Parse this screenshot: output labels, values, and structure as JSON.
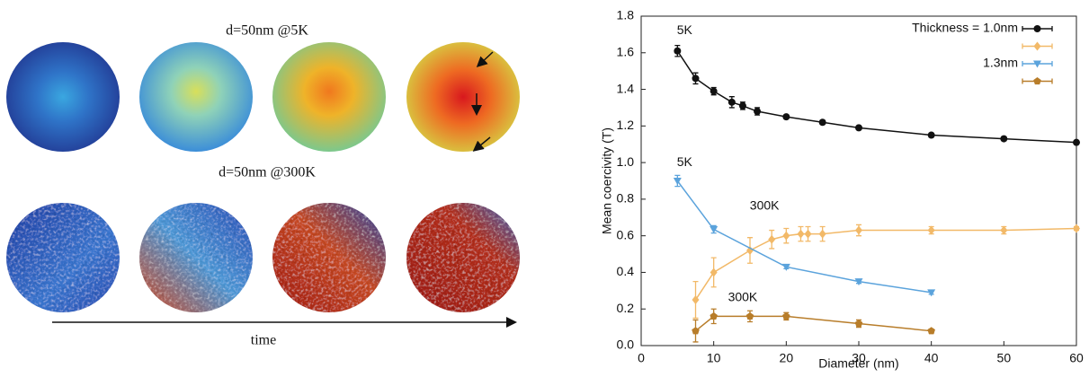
{
  "panel": {
    "labels": [
      "d=50nm @5K",
      "d=50nm @300K"
    ],
    "axis_label": "time"
  },
  "chart_data": {
    "type": "line",
    "xlabel": "Diameter (nm)",
    "ylabel": "Mean coercivity (T)",
    "xlim": [
      0,
      60
    ],
    "xticks": [
      0,
      10,
      20,
      30,
      40,
      50,
      60
    ],
    "ylim": [
      0,
      1.8
    ],
    "yticks": [
      {
        "value": 0,
        "label": "0.0"
      },
      0.2,
      0.4,
      0.6,
      0.8,
      {
        "value": 1,
        "label": "1.0"
      },
      1.2,
      1.4,
      1.6,
      1.8
    ],
    "legend": "upper right",
    "annotations": [
      "5K",
      "5K",
      "300K",
      "300K"
    ],
    "series": [
      {
        "name": "Thickness = 1.0nm",
        "color": "#111111",
        "marker": "circle",
        "x": [
          5,
          7.5,
          10,
          12.5,
          14,
          16,
          20,
          25,
          30,
          40,
          50,
          60
        ],
        "values": [
          1.61,
          1.46,
          1.39,
          1.33,
          1.31,
          1.28,
          1.25,
          1.22,
          1.19,
          1.15,
          1.13,
          1.11
        ],
        "errors": [
          0.03,
          0.03,
          0.02,
          0.03,
          0.02,
          0.02,
          0.01,
          0.01,
          0.01,
          0.01,
          0.01,
          0.01
        ]
      },
      {
        "color": "#f2b968",
        "marker": "diamond",
        "x": [
          7.5,
          10,
          15,
          18,
          20,
          22,
          23,
          25,
          30,
          40,
          50,
          60
        ],
        "values": [
          0.25,
          0.4,
          0.52,
          0.58,
          0.6,
          0.61,
          0.61,
          0.61,
          0.63,
          0.63,
          0.63,
          0.64
        ],
        "errors": [
          0.1,
          0.08,
          0.07,
          0.05,
          0.04,
          0.04,
          0.04,
          0.04,
          0.03,
          0.02,
          0.02,
          0.01
        ]
      },
      {
        "name": "1.3nm",
        "color": "#5ba3dc",
        "marker": "triangle-down",
        "x": [
          5,
          10,
          20,
          30,
          40
        ],
        "values": [
          0.9,
          0.635,
          0.43,
          0.35,
          0.29
        ],
        "errors": [
          0.03,
          0.02,
          0.01,
          0.01,
          0.01
        ]
      },
      {
        "color": "#b87d2a",
        "marker": "pentagon",
        "x": [
          7.5,
          10,
          15,
          20,
          30,
          40
        ],
        "values": [
          0.08,
          0.16,
          0.16,
          0.16,
          0.12,
          0.08
        ],
        "errors": [
          0.06,
          0.04,
          0.03,
          0.02,
          0.02,
          0.01
        ]
      }
    ]
  }
}
